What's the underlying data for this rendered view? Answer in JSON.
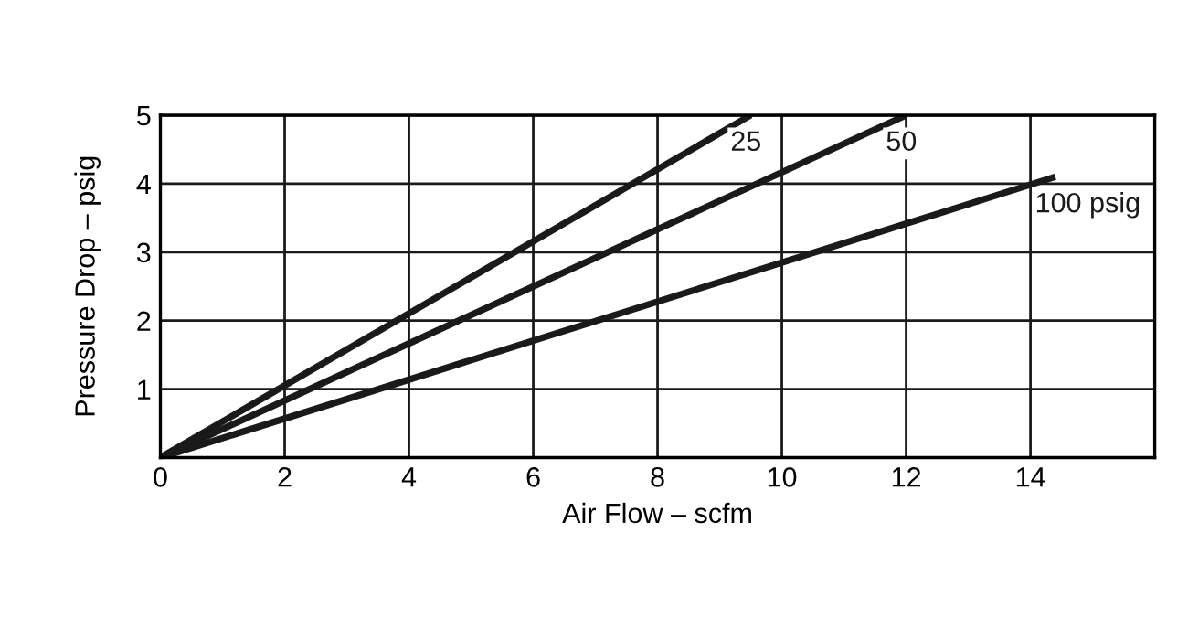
{
  "chart_data": {
    "type": "line",
    "xlabel": "Air Flow – scfm",
    "ylabel": "Pressure Drop – psig",
    "series": [
      {
        "name": "25",
        "color": "#1a1a1a",
        "x": [
          0,
          9.5
        ],
        "values": [
          0,
          5
        ]
      },
      {
        "name": "50",
        "color": "#1a1a1a",
        "x": [
          0,
          12
        ],
        "values": [
          0,
          5
        ]
      },
      {
        "name": "100 psig",
        "color": "#1a1a1a",
        "x": [
          0,
          14.4
        ],
        "values": [
          0,
          4.1
        ]
      }
    ],
    "xlim": [
      0,
      16
    ],
    "xticks": [
      0,
      2,
      4,
      6,
      8,
      10,
      12,
      14,
      {
        "value": 16,
        "label": null
      }
    ],
    "ylim": [
      0,
      5
    ],
    "yticks": [
      {
        "value": 0,
        "label": null
      },
      1,
      2,
      3,
      4,
      5
    ],
    "grid": true,
    "legend": false,
    "marker": "none",
    "line_style": "solid"
  }
}
